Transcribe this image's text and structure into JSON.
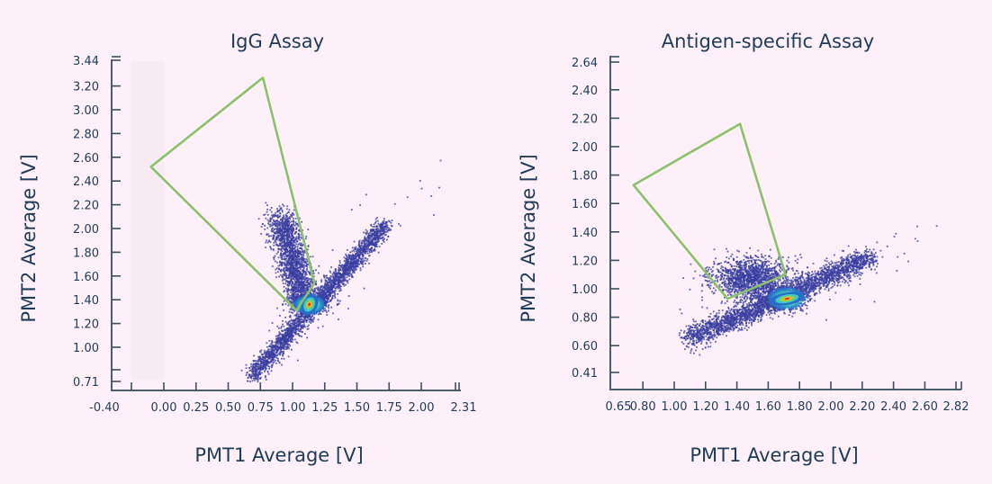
{
  "chart_data": [
    {
      "type": "scatter",
      "title": "IgG Assay",
      "xlabel": "PMT1 Average [V]",
      "ylabel": "PMT2 Average [V]",
      "xlim": [
        -0.4,
        2.31
      ],
      "ylim": [
        0.71,
        3.44
      ],
      "xticks": [
        "-0.40",
        "0.00",
        "0.25",
        "0.50",
        "0.75",
        "1.00",
        "1.25",
        "1.50",
        "1.75",
        "2.00",
        "2.31"
      ],
      "xtick_values": [
        -0.4,
        0.0,
        0.25,
        0.5,
        0.75,
        1.0,
        1.25,
        1.5,
        1.75,
        2.0,
        2.31
      ],
      "yticks": [
        "3.44",
        "3.20",
        "3.00",
        "2.80",
        "2.60",
        "2.40",
        "2.20",
        "2.00",
        "1.80",
        "1.60",
        "1.40",
        "1.20",
        "1.00",
        "0.71"
      ],
      "ytick_values": [
        3.44,
        3.2,
        3.0,
        2.8,
        2.6,
        2.4,
        2.2,
        2.0,
        1.8,
        1.6,
        1.4,
        1.2,
        1.0,
        0.71
      ],
      "gate": [
        [
          0.77,
          3.27
        ],
        [
          -0.1,
          2.52
        ],
        [
          1.03,
          1.31
        ],
        [
          1.17,
          1.54
        ]
      ],
      "gate_color": "#8cc06a",
      "density_peak": [
        1.13,
        1.36
      ],
      "populations": [
        {
          "name": "diagonal",
          "from": [
            0.68,
            0.75
          ],
          "to": [
            1.72,
            2.03
          ],
          "spread": 0.035,
          "count": 2600
        },
        {
          "name": "upper-branch",
          "from": [
            1.1,
            1.4
          ],
          "to": [
            0.9,
            2.1
          ],
          "spread": 0.06,
          "count": 1800
        },
        {
          "name": "core",
          "center": [
            1.13,
            1.37
          ],
          "spread": 0.05,
          "count": 900
        }
      ],
      "point_color": "#3a3fa0"
    },
    {
      "type": "scatter",
      "title": "Antigen-specific Assay",
      "xlabel": "PMT1 Average [V]",
      "ylabel": "PMT2 Average [V]",
      "xlim": [
        0.65,
        2.82
      ],
      "ylim": [
        0.41,
        2.64
      ],
      "xticks": [
        "0.65",
        "0.80",
        "1.00",
        "1.20",
        "1.40",
        "1.60",
        "1.80",
        "2.00",
        "2.20",
        "2.40",
        "2.60",
        "2.82"
      ],
      "xtick_values": [
        0.65,
        0.8,
        1.0,
        1.2,
        1.4,
        1.6,
        1.8,
        2.0,
        2.2,
        2.4,
        2.6,
        2.82
      ],
      "yticks": [
        "2.64",
        "2.40",
        "2.20",
        "2.00",
        "1.80",
        "1.60",
        "1.40",
        "1.20",
        "1.00",
        "0.80",
        "0.60",
        "0.41"
      ],
      "ytick_values": [
        2.64,
        2.4,
        2.2,
        2.0,
        1.8,
        1.6,
        1.4,
        1.2,
        1.0,
        0.8,
        0.6,
        0.41
      ],
      "gate": [
        [
          0.74,
          1.73
        ],
        [
          1.42,
          2.16
        ],
        [
          1.71,
          1.1
        ],
        [
          1.34,
          0.93
        ]
      ],
      "gate_color": "#8cc06a",
      "density_peak": [
        1.72,
        0.93
      ],
      "populations": [
        {
          "name": "diagonal",
          "from": [
            1.1,
            0.65
          ],
          "to": [
            2.25,
            1.22
          ],
          "spread": 0.04,
          "count": 2600
        },
        {
          "name": "upper-cluster",
          "center": [
            1.5,
            1.07
          ],
          "spread": 0.09,
          "count": 1500
        },
        {
          "name": "core",
          "center": [
            1.7,
            0.93
          ],
          "spread": 0.05,
          "count": 900
        }
      ],
      "point_color": "#3a3fa0"
    }
  ]
}
